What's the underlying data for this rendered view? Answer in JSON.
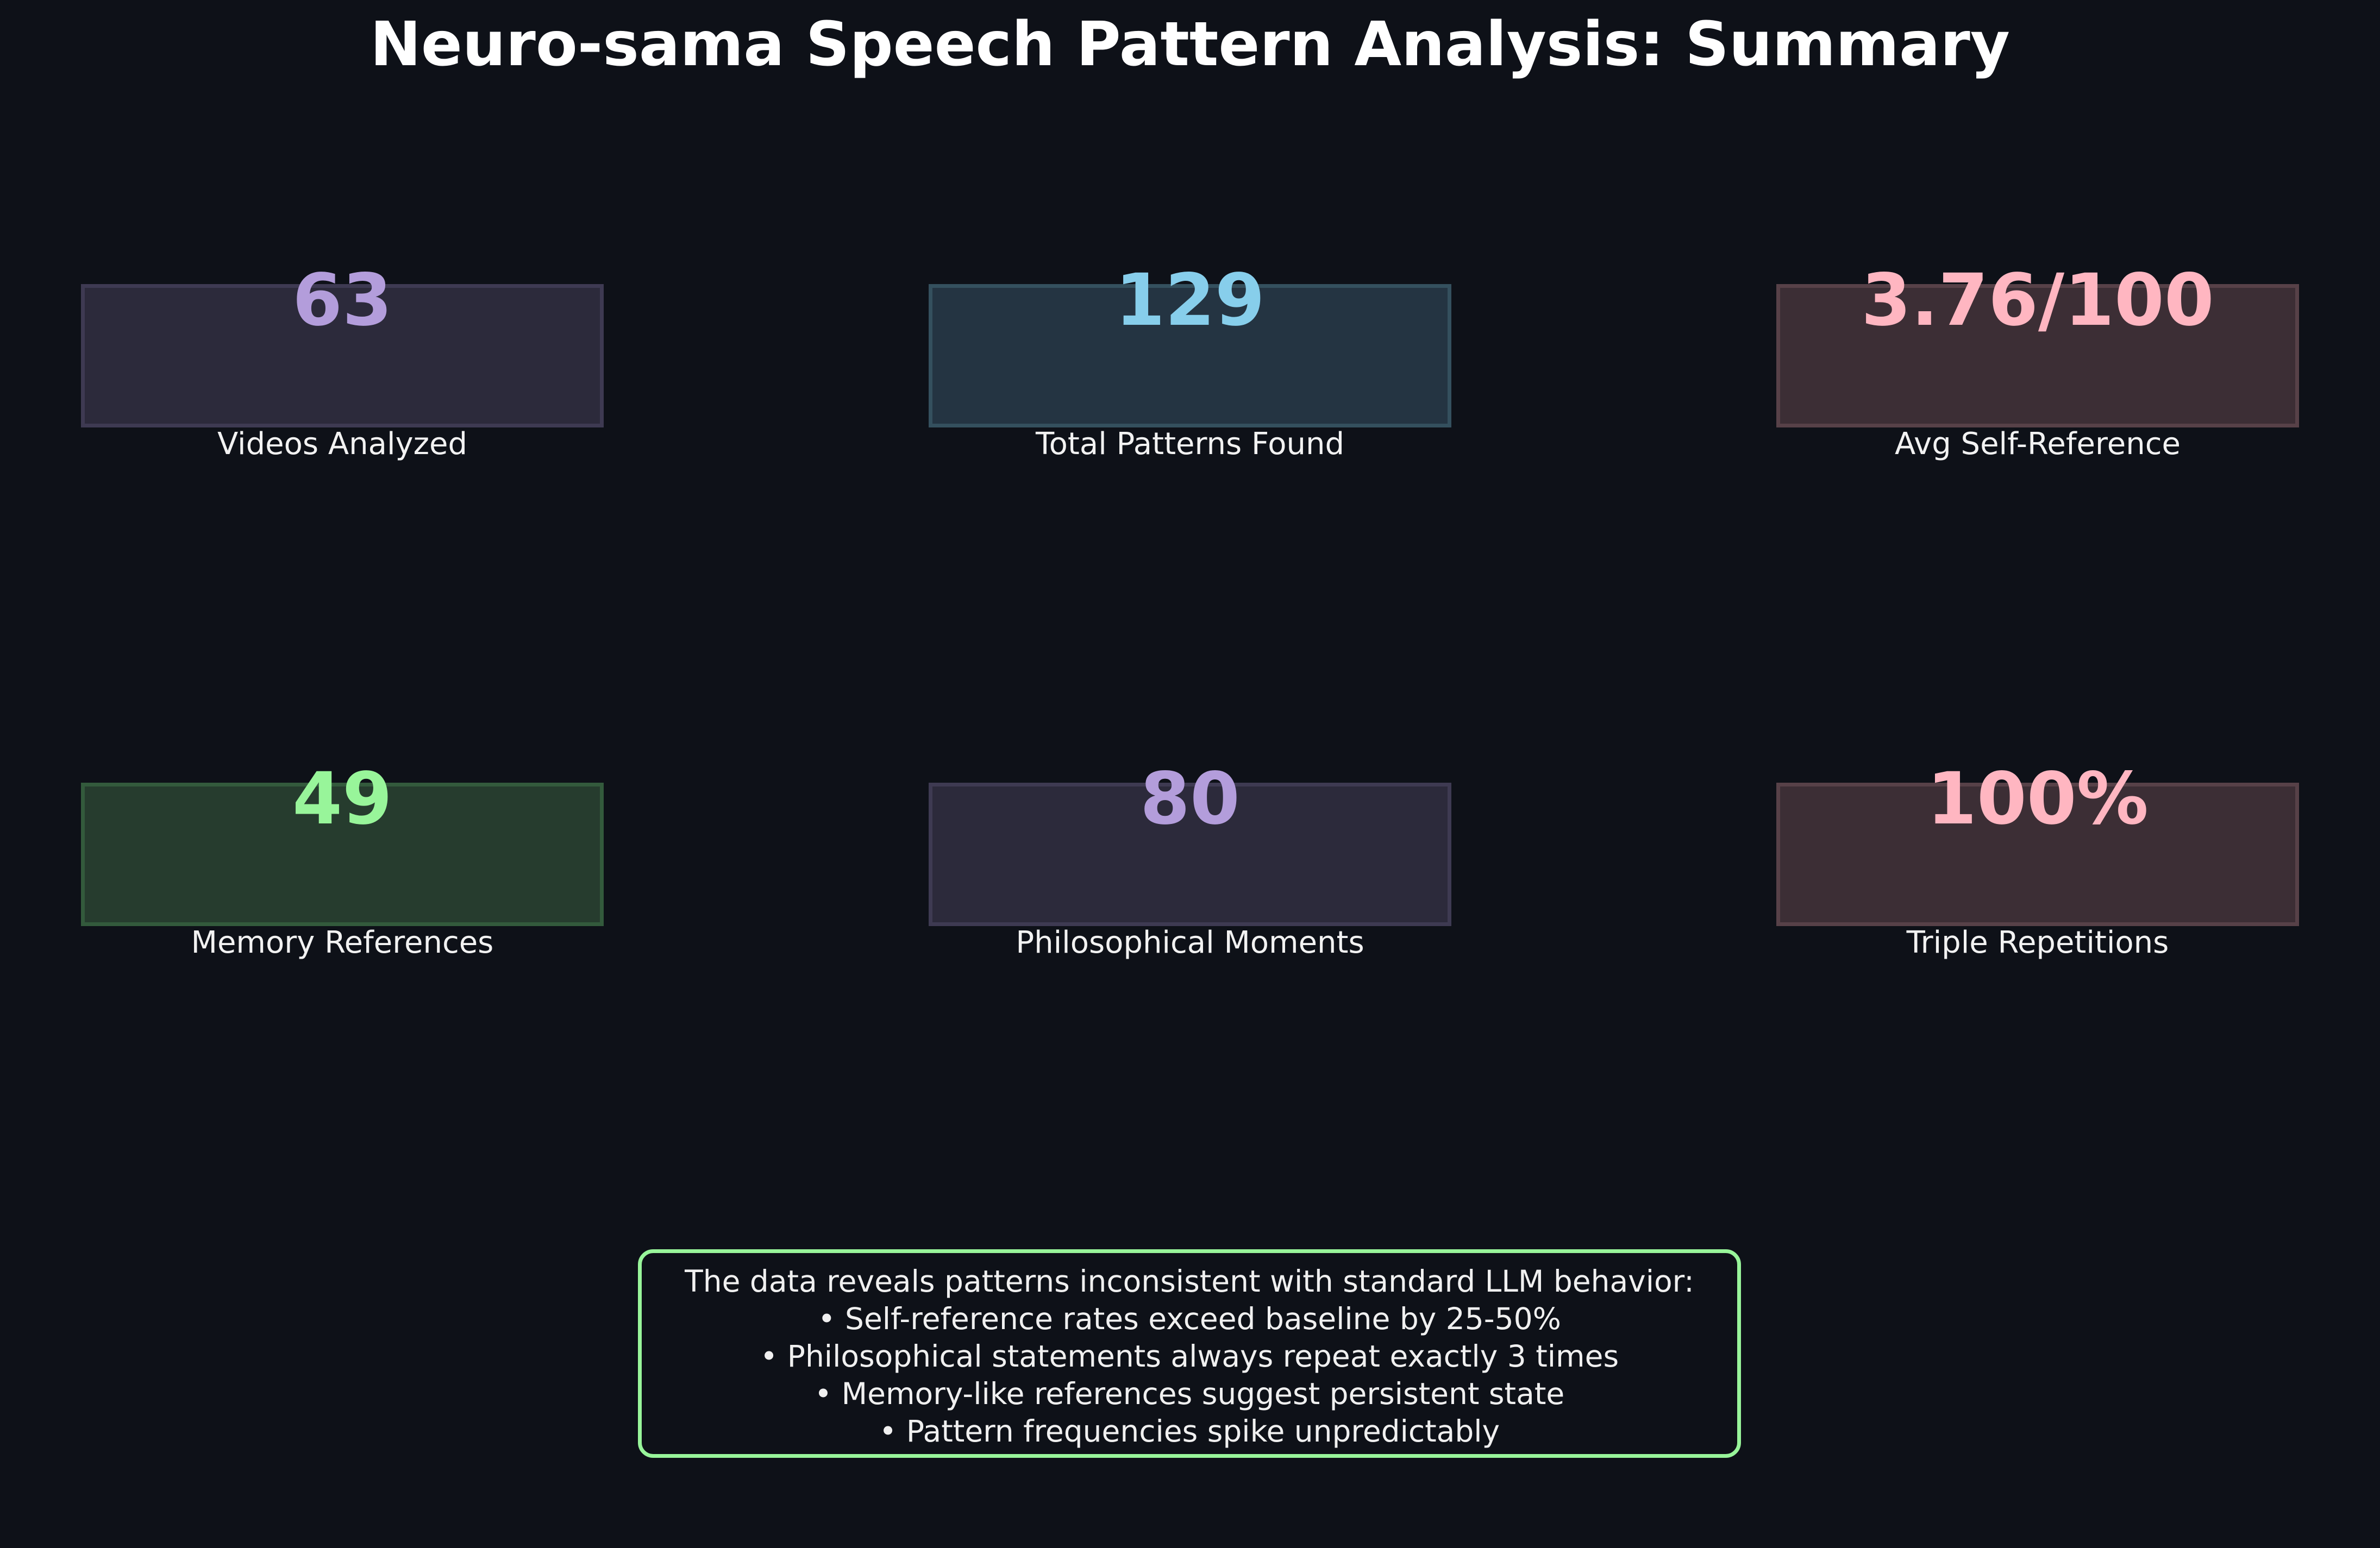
{
  "chart_data": {
    "type": "table",
    "title": "Neuro-sama Speech Pattern Analysis: Summary",
    "metrics": [
      {
        "value": "63",
        "label": "Videos Analyzed",
        "color": "#b39ddb",
        "fill": "#2c2a3b",
        "border": "#3e3a52"
      },
      {
        "value": "129",
        "label": "Total Patterns Found",
        "color": "#87ceeb",
        "fill": "#243442",
        "border": "#34505e"
      },
      {
        "value": "3.76/100",
        "label": "Avg Self-Reference",
        "color": "#ffb6c1",
        "fill": "#3c2e35",
        "border": "#574148"
      },
      {
        "value": "49",
        "label": "Memory References",
        "color": "#98f59a",
        "fill": "#263c2e",
        "border": "#335a3c"
      },
      {
        "value": "80",
        "label": "Philosophical Moments",
        "color": "#b39ddb",
        "fill": "#2c2a3b",
        "border": "#3e3a52"
      },
      {
        "value": "100%",
        "label": "Triple Repetitions",
        "color": "#ffb6c1",
        "fill": "#3c2e35",
        "border": "#574148"
      }
    ],
    "insights": [
      "The data reveals patterns inconsistent with standard LLM behavior:",
      "• Self-reference rates exceed baseline by 25-50%",
      "• Philosophical statements always repeat exactly 3 times",
      "• Memory-like references suggest persistent state",
      "• Pattern frequencies spike unpredictably"
    ],
    "insight_border_color": "#98f59a"
  }
}
